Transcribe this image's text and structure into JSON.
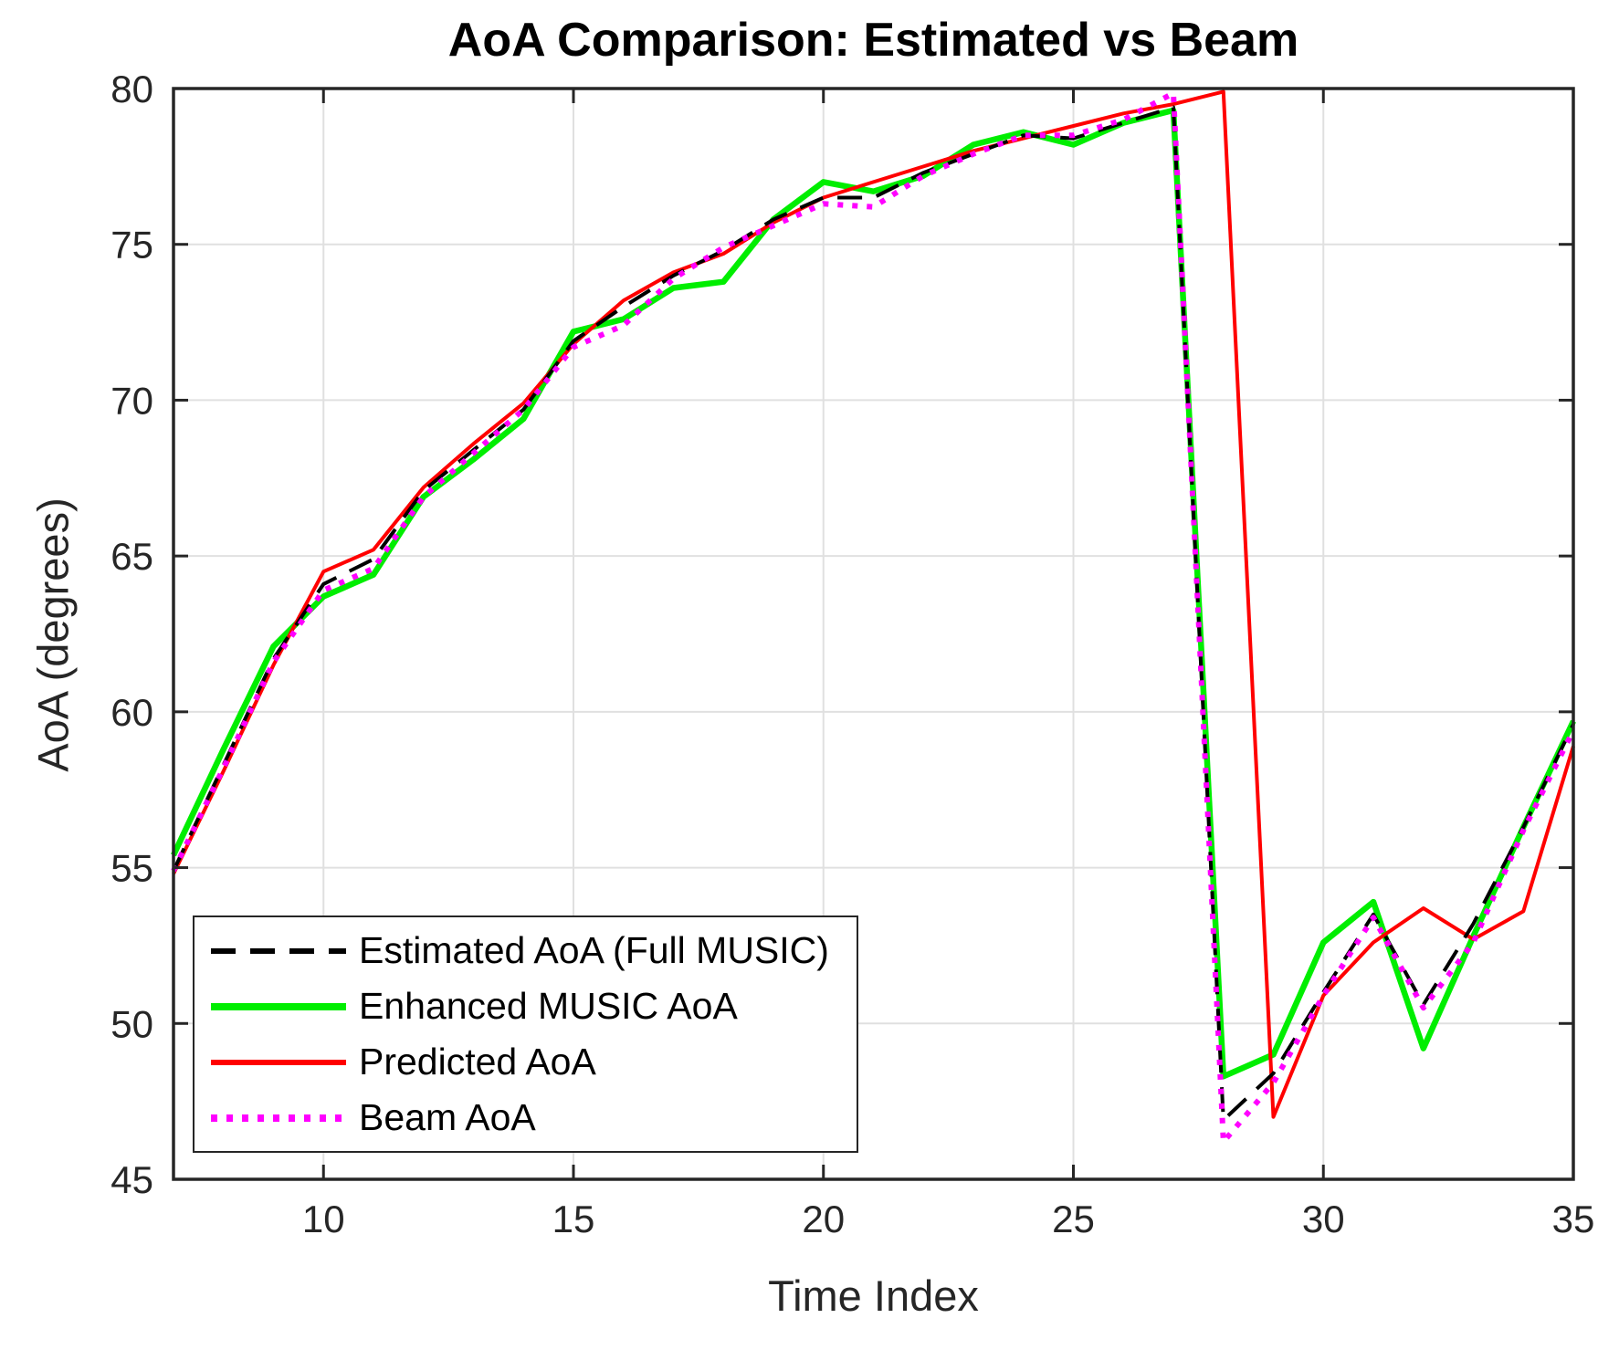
{
  "figure": {
    "title": "AoA Comparison: Estimated vs Beam",
    "xlabel": "Time Index",
    "ylabel": "AoA (degrees)"
  },
  "chart_data": {
    "type": "line",
    "title": "AoA Comparison: Estimated vs Beam",
    "xlabel": "Time Index",
    "ylabel": "AoA (degrees)",
    "xlim": [
      7,
      35
    ],
    "ylim": [
      45,
      80
    ],
    "x_ticks": [
      "10",
      "15",
      "20",
      "25",
      "30",
      "35"
    ],
    "x_tick_values": [
      10,
      15,
      20,
      25,
      30,
      35
    ],
    "y_ticks": [
      "45",
      "50",
      "55",
      "60",
      "65",
      "70",
      "75",
      "80"
    ],
    "y_tick_values": [
      45,
      50,
      55,
      60,
      65,
      70,
      75,
      80
    ],
    "grid": true,
    "legend_position": "southwest",
    "x": [
      7,
      8,
      9,
      10,
      11,
      12,
      13,
      14,
      15,
      16,
      17,
      18,
      19,
      20,
      21,
      22,
      23,
      24,
      25,
      26,
      27,
      28,
      29,
      30,
      31,
      32,
      33,
      34,
      35
    ],
    "series": [
      {
        "name": "Estimated AoA (Full MUSIC)",
        "color": "#000000",
        "style": "dashed",
        "width": 4,
        "z": 3,
        "values": [
          54.9,
          58.3,
          61.7,
          64.1,
          64.9,
          67.1,
          68.4,
          69.7,
          71.9,
          73.0,
          74.0,
          74.8,
          75.8,
          76.5,
          76.5,
          77.3,
          77.9,
          78.5,
          78.4,
          78.9,
          79.4,
          46.9,
          48.4,
          51.0,
          53.5,
          50.6,
          53.2,
          56.3,
          59.6
        ]
      },
      {
        "name": "Enhanced MUSIC AoA",
        "color": "#00EE00",
        "style": "solid",
        "width": 6.5,
        "z": 1,
        "values": [
          55.4,
          58.8,
          62.1,
          63.7,
          64.4,
          66.9,
          68.1,
          69.4,
          72.2,
          72.6,
          73.6,
          73.8,
          75.8,
          77.0,
          76.7,
          77.2,
          78.2,
          78.6,
          78.2,
          78.9,
          79.3,
          48.3,
          49.0,
          52.6,
          53.9,
          49.2,
          52.8,
          56.3,
          59.7
        ]
      },
      {
        "name": "Predicted AoA",
        "color": "#FF0000",
        "style": "solid",
        "width": 4,
        "z": 2,
        "values": [
          54.8,
          58.1,
          61.5,
          64.5,
          65.2,
          67.2,
          68.6,
          69.9,
          71.8,
          73.2,
          74.1,
          74.7,
          75.7,
          76.5,
          77.0,
          77.5,
          78.0,
          78.4,
          78.8,
          79.2,
          79.5,
          79.9,
          47.0,
          50.9,
          52.6,
          53.7,
          52.7,
          53.6,
          58.9
        ]
      },
      {
        "name": "Beam AoA",
        "color": "#FF00FF",
        "style": "dotted",
        "width": 6,
        "z": 4,
        "values": [
          54.9,
          58.2,
          61.6,
          63.9,
          64.6,
          66.9,
          68.3,
          69.7,
          71.7,
          72.4,
          73.9,
          74.9,
          75.6,
          76.3,
          76.2,
          77.2,
          77.9,
          78.5,
          78.5,
          79.0,
          79.85,
          46.2,
          48.1,
          50.9,
          53.4,
          50.5,
          52.6,
          56.2,
          59.4
        ]
      }
    ],
    "colors": {
      "grid": "#E0E0E0",
      "axis": "#262626",
      "tick_text": "#262626",
      "title_text": "#000000",
      "background": "#FFFFFF"
    }
  }
}
